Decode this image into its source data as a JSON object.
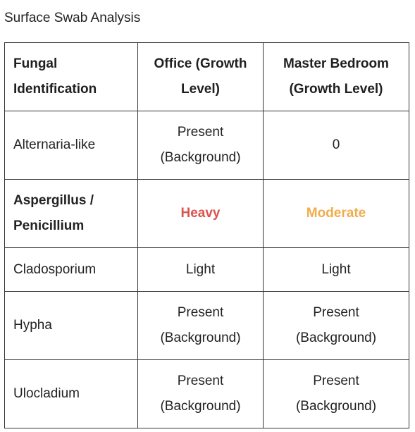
{
  "caption": "Surface Swab Analysis",
  "table": {
    "headers": [
      "Fungal Identification",
      "Office (Growth Level)",
      "Master Bedroom (Growth Level)"
    ],
    "rows": [
      {
        "name": "Alternaria-like",
        "office": "Present (Background)",
        "bedroom": "0",
        "bold": false
      },
      {
        "name": "Aspergillus / Penicillium",
        "office": "Heavy",
        "bedroom": "Moderate",
        "bold": true
      },
      {
        "name": "Cladosporium",
        "office": "Light",
        "bedroom": "Light",
        "bold": false
      },
      {
        "name": "Hypha",
        "office": "Present (Background)",
        "bedroom": "Present (Background)",
        "bold": false
      },
      {
        "name": "Ulocladium",
        "office": "Present (Background)",
        "bedroom": "Present (Background)",
        "bold": false
      }
    ]
  },
  "colors": {
    "heavy": "#d9534f",
    "moderate": "#f0ad4e",
    "border": "#333333",
    "text": "#222222"
  }
}
